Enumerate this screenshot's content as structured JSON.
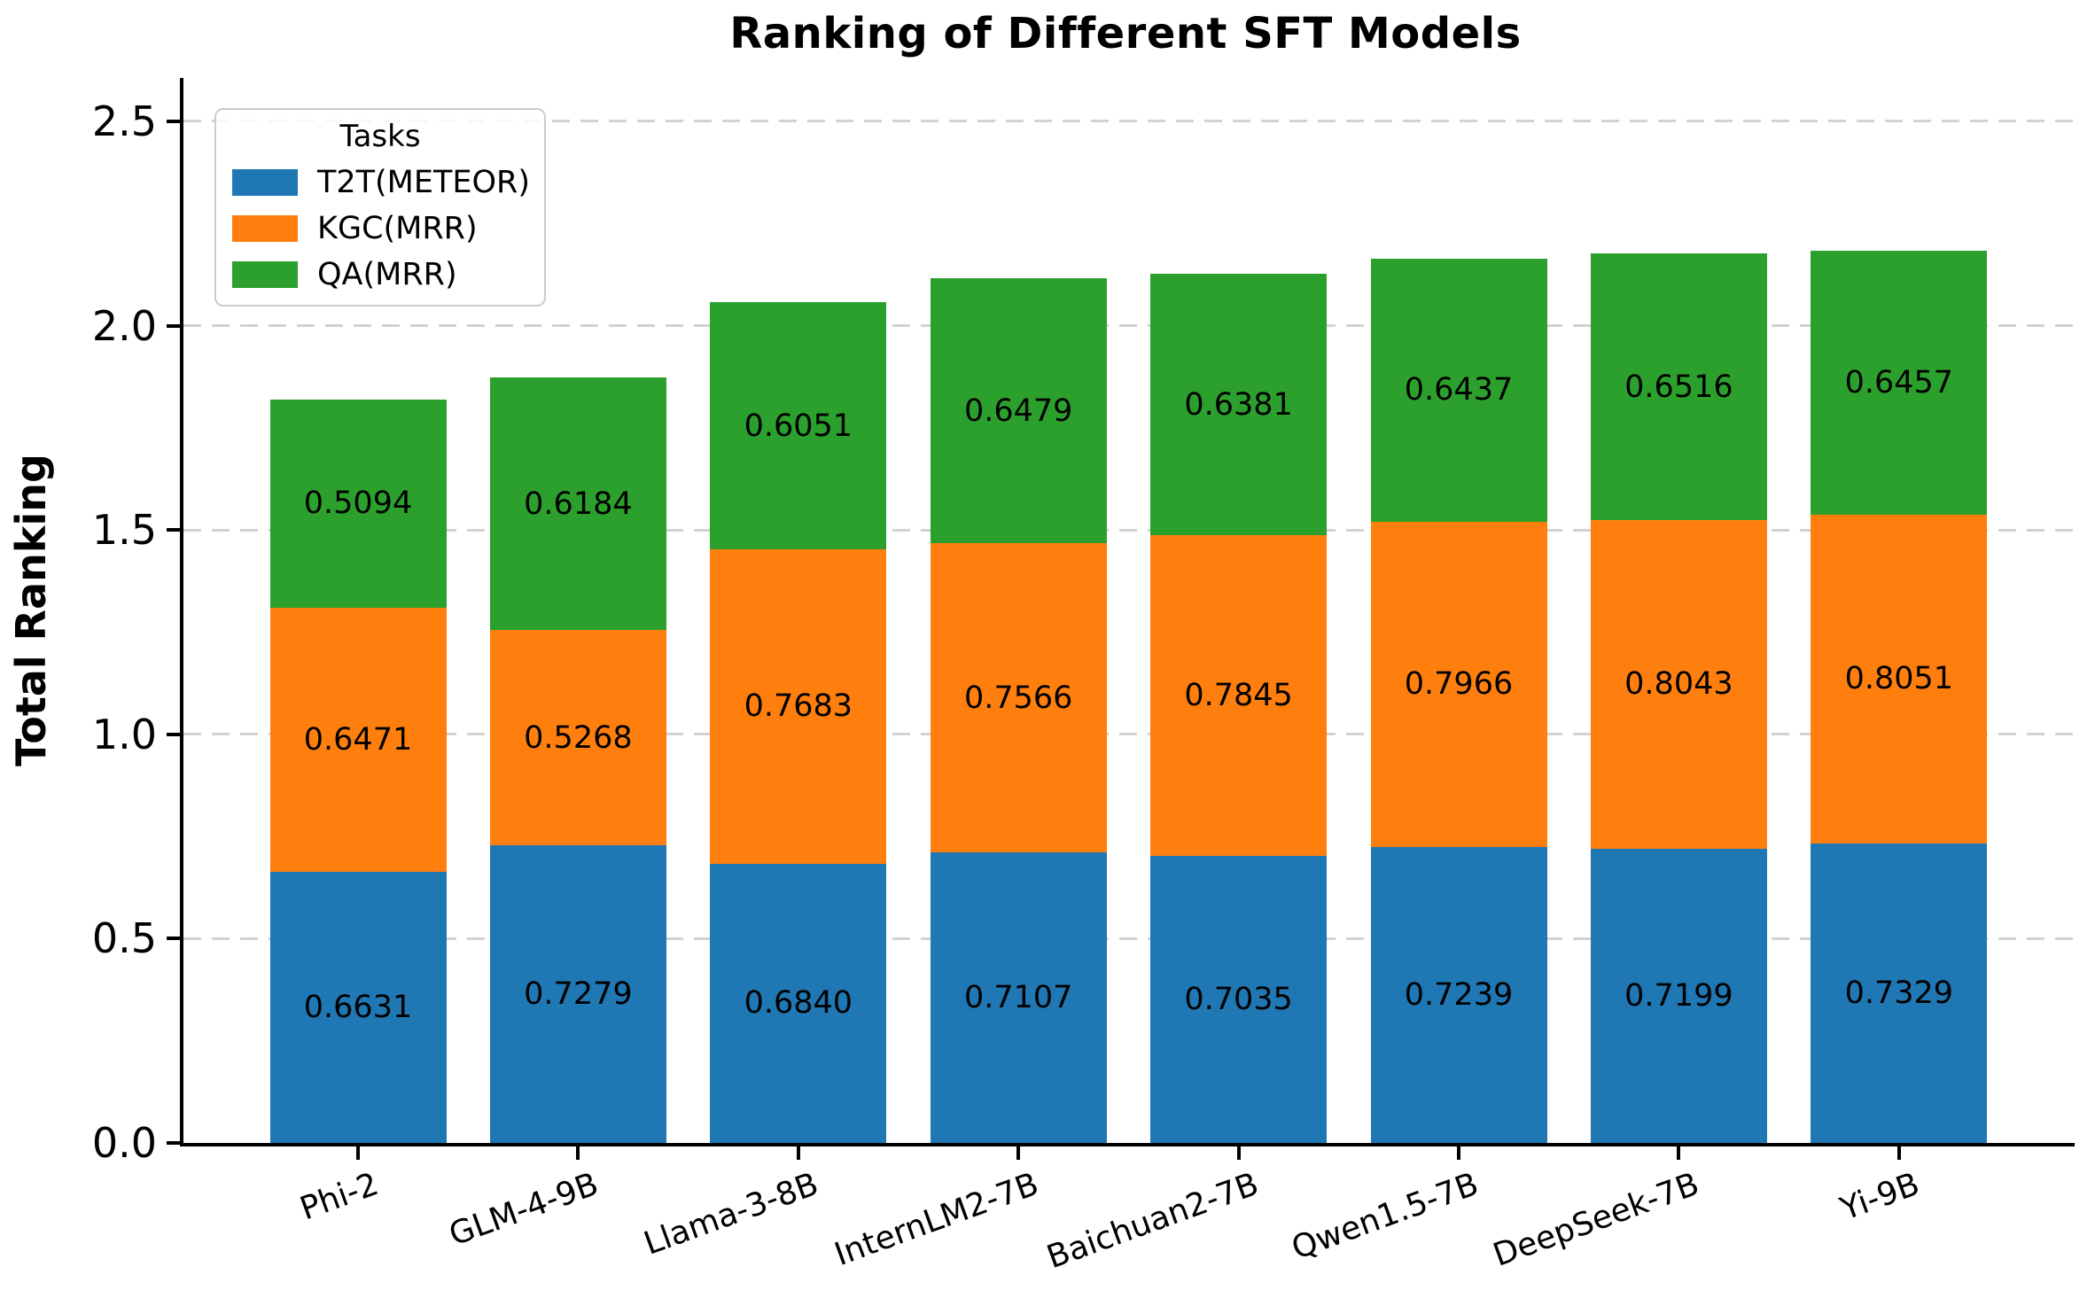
{
  "title": "Ranking of Different SFT Models",
  "ylabel": "Total Ranking",
  "legend": {
    "title": "Tasks",
    "entries": [
      {
        "label": "T2T(METEOR)",
        "color": "#1f77b4"
      },
      {
        "label": "KGC(MRR)",
        "color": "#ff7f0e"
      },
      {
        "label": "QA(MRR)",
        "color": "#2ca02c"
      }
    ]
  },
  "chart_data": {
    "type": "bar",
    "stacked": true,
    "title": "Ranking of Different SFT Models",
    "xlabel": "",
    "ylabel": "Total Ranking",
    "categories": [
      "Phi-2",
      "GLM-4-9B",
      "Llama-3-8B",
      "InternLM2-7B",
      "Baichuan2-7B",
      "Qwen1.5-7B",
      "DeepSeek-7B",
      "Yi-9B"
    ],
    "series": [
      {
        "name": "T2T(METEOR)",
        "color": "#1f77b4",
        "values": [
          0.6631,
          0.7279,
          0.684,
          0.7107,
          0.7035,
          0.7239,
          0.7199,
          0.7329
        ]
      },
      {
        "name": "KGC(MRR)",
        "color": "#ff7f0e",
        "values": [
          0.6471,
          0.5268,
          0.7683,
          0.7566,
          0.7845,
          0.7966,
          0.8043,
          0.8051
        ]
      },
      {
        "name": "QA(MRR)",
        "color": "#2ca02c",
        "values": [
          0.5094,
          0.6184,
          0.6051,
          0.6479,
          0.6381,
          0.6437,
          0.6516,
          0.6457
        ]
      }
    ],
    "totals": [
      1.8196,
      1.8731,
      2.0574,
      2.1152,
      2.1261,
      2.1642,
      2.1758,
      2.1837
    ],
    "yticks": [
      "0.0",
      "0.5",
      "1.0",
      "1.5",
      "2.0",
      "2.5"
    ],
    "ylim": [
      0,
      2.606
    ],
    "grid": "horizontal dashed",
    "grid_color": "#d2d2d2",
    "legend_position": "upper left",
    "value_label_decimals": 4
  }
}
